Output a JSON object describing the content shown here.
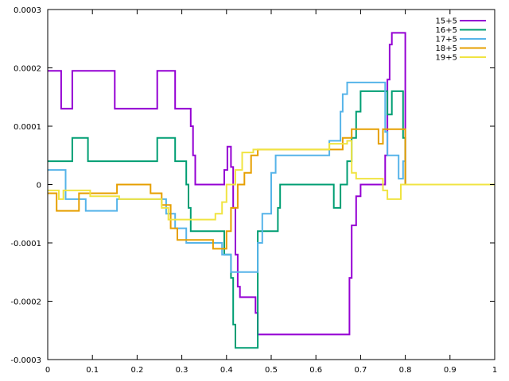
{
  "chart_data": {
    "type": "line",
    "title": "",
    "xlabel": "",
    "ylabel": "",
    "xlim": [
      0,
      1
    ],
    "ylim": [
      -0.0003,
      0.0003
    ],
    "x_ticks": [
      0,
      0.1,
      0.2,
      0.3,
      0.4,
      0.5,
      0.6,
      0.7,
      0.8,
      0.9,
      1
    ],
    "x_tick_labels": [
      "0",
      "0.1",
      "0.2",
      "0.3",
      "0.4",
      "0.5",
      "0.6",
      "0.7",
      "0.8",
      "0.9",
      "1"
    ],
    "y_ticks": [
      -0.0003,
      -0.0002,
      -0.0001,
      0,
      0.0001,
      0.0002,
      0.0003
    ],
    "y_tick_labels": [
      "-0.0003",
      "-0.0002",
      "-0.0001",
      "0",
      "0.0001",
      "0.0002",
      "0.0003"
    ],
    "grid": false,
    "legend_position": "top-right",
    "series": [
      {
        "name": "15+5",
        "color": "#9400d3",
        "points": [
          [
            0,
            0.000195
          ],
          [
            0.03,
            0.000195
          ],
          [
            0.03,
            0.00013
          ],
          [
            0.055,
            0.00013
          ],
          [
            0.055,
            0.000195
          ],
          [
            0.15,
            0.000195
          ],
          [
            0.15,
            0.00013
          ],
          [
            0.245,
            0.00013
          ],
          [
            0.245,
            0.000195
          ],
          [
            0.285,
            0.000195
          ],
          [
            0.285,
            0.00013
          ],
          [
            0.32,
            0.00013
          ],
          [
            0.32,
            0.0001
          ],
          [
            0.325,
            0.0001
          ],
          [
            0.325,
            5e-05
          ],
          [
            0.33,
            5e-05
          ],
          [
            0.33,
            0
          ],
          [
            0.395,
            0
          ],
          [
            0.395,
            2.5e-05
          ],
          [
            0.402,
            2.5e-05
          ],
          [
            0.402,
            6.5e-05
          ],
          [
            0.41,
            6.5e-05
          ],
          [
            0.41,
            3e-05
          ],
          [
            0.415,
            3e-05
          ],
          [
            0.415,
            -4e-05
          ],
          [
            0.42,
            -4e-05
          ],
          [
            0.42,
            -0.00012
          ],
          [
            0.425,
            -0.00012
          ],
          [
            0.425,
            -0.000175
          ],
          [
            0.43,
            -0.000175
          ],
          [
            0.43,
            -0.000193
          ],
          [
            0.465,
            -0.000193
          ],
          [
            0.465,
            -0.00022
          ],
          [
            0.47,
            -0.00022
          ],
          [
            0.47,
            -0.000257
          ],
          [
            0.675,
            -0.000257
          ],
          [
            0.675,
            -0.00016
          ],
          [
            0.68,
            -0.00016
          ],
          [
            0.68,
            -7e-05
          ],
          [
            0.69,
            -7e-05
          ],
          [
            0.69,
            -2e-05
          ],
          [
            0.7,
            -2e-05
          ],
          [
            0.7,
            0
          ],
          [
            0.755,
            0
          ],
          [
            0.755,
            5e-05
          ],
          [
            0.76,
            5e-05
          ],
          [
            0.76,
            0.00018
          ],
          [
            0.765,
            0.00018
          ],
          [
            0.765,
            0.00024
          ],
          [
            0.77,
            0.00024
          ],
          [
            0.77,
            0.00026
          ],
          [
            0.8,
            0.00026
          ],
          [
            0.8,
            0
          ]
        ]
      },
      {
        "name": "16+5",
        "color": "#009e73",
        "points": [
          [
            0,
            4e-05
          ],
          [
            0.055,
            4e-05
          ],
          [
            0.055,
            8e-05
          ],
          [
            0.09,
            8e-05
          ],
          [
            0.09,
            4e-05
          ],
          [
            0.245,
            4e-05
          ],
          [
            0.245,
            8e-05
          ],
          [
            0.285,
            8e-05
          ],
          [
            0.285,
            4e-05
          ],
          [
            0.31,
            4e-05
          ],
          [
            0.31,
            0
          ],
          [
            0.315,
            0
          ],
          [
            0.315,
            -4e-05
          ],
          [
            0.32,
            -4e-05
          ],
          [
            0.32,
            -8e-05
          ],
          [
            0.395,
            -8e-05
          ],
          [
            0.395,
            -0.00012
          ],
          [
            0.41,
            -0.00012
          ],
          [
            0.41,
            -0.00016
          ],
          [
            0.415,
            -0.00016
          ],
          [
            0.415,
            -0.00024
          ],
          [
            0.42,
            -0.00024
          ],
          [
            0.42,
            -0.00028
          ],
          [
            0.47,
            -0.00028
          ],
          [
            0.47,
            -8e-05
          ],
          [
            0.515,
            -8e-05
          ],
          [
            0.515,
            -4e-05
          ],
          [
            0.52,
            -4e-05
          ],
          [
            0.52,
            0
          ],
          [
            0.64,
            0
          ],
          [
            0.64,
            -4e-05
          ],
          [
            0.655,
            -4e-05
          ],
          [
            0.655,
            0
          ],
          [
            0.67,
            0
          ],
          [
            0.67,
            4e-05
          ],
          [
            0.68,
            4e-05
          ],
          [
            0.68,
            8e-05
          ],
          [
            0.69,
            8e-05
          ],
          [
            0.69,
            0.000125
          ],
          [
            0.7,
            0.000125
          ],
          [
            0.7,
            0.00016
          ],
          [
            0.76,
            0.00016
          ],
          [
            0.76,
            0.00012
          ],
          [
            0.77,
            0.00012
          ],
          [
            0.77,
            0.00016
          ],
          [
            0.795,
            0.00016
          ],
          [
            0.795,
            8e-05
          ],
          [
            0.8,
            8e-05
          ],
          [
            0.8,
            0
          ]
        ]
      },
      {
        "name": "17+5",
        "color": "#56b4e9",
        "points": [
          [
            0,
            2.5e-05
          ],
          [
            0.04,
            2.5e-05
          ],
          [
            0.04,
            -2.5e-05
          ],
          [
            0.085,
            -2.5e-05
          ],
          [
            0.085,
            -4.5e-05
          ],
          [
            0.155,
            -4.5e-05
          ],
          [
            0.155,
            -2.5e-05
          ],
          [
            0.265,
            -2.5e-05
          ],
          [
            0.265,
            -5e-05
          ],
          [
            0.285,
            -5e-05
          ],
          [
            0.285,
            -7.5e-05
          ],
          [
            0.31,
            -7.5e-05
          ],
          [
            0.31,
            -0.0001
          ],
          [
            0.39,
            -0.0001
          ],
          [
            0.39,
            -0.00012
          ],
          [
            0.41,
            -0.00012
          ],
          [
            0.41,
            -0.00015
          ],
          [
            0.47,
            -0.00015
          ],
          [
            0.47,
            -0.0001
          ],
          [
            0.48,
            -0.0001
          ],
          [
            0.48,
            -5e-05
          ],
          [
            0.5,
            -5e-05
          ],
          [
            0.5,
            2e-05
          ],
          [
            0.51,
            2e-05
          ],
          [
            0.51,
            5e-05
          ],
          [
            0.63,
            5e-05
          ],
          [
            0.63,
            7.5e-05
          ],
          [
            0.655,
            7.5e-05
          ],
          [
            0.655,
            0.000125
          ],
          [
            0.66,
            0.000125
          ],
          [
            0.66,
            0.000155
          ],
          [
            0.67,
            0.000155
          ],
          [
            0.67,
            0.000175
          ],
          [
            0.755,
            0.000175
          ],
          [
            0.755,
            9e-05
          ],
          [
            0.76,
            9e-05
          ],
          [
            0.76,
            5e-05
          ],
          [
            0.785,
            5e-05
          ],
          [
            0.785,
            1e-05
          ],
          [
            0.795,
            1e-05
          ],
          [
            0.795,
            4e-05
          ],
          [
            0.8,
            4e-05
          ],
          [
            0.8,
            0
          ]
        ]
      },
      {
        "name": "18+5",
        "color": "#e69f00",
        "points": [
          [
            0,
            -1.5e-05
          ],
          [
            0.02,
            -1.5e-05
          ],
          [
            0.02,
            -4.5e-05
          ],
          [
            0.07,
            -4.5e-05
          ],
          [
            0.07,
            -1.5e-05
          ],
          [
            0.155,
            -1.5e-05
          ],
          [
            0.155,
            0
          ],
          [
            0.23,
            0
          ],
          [
            0.23,
            -1.5e-05
          ],
          [
            0.255,
            -1.5e-05
          ],
          [
            0.255,
            -3.5e-05
          ],
          [
            0.275,
            -3.5e-05
          ],
          [
            0.275,
            -7.5e-05
          ],
          [
            0.29,
            -7.5e-05
          ],
          [
            0.29,
            -9.5e-05
          ],
          [
            0.37,
            -9.5e-05
          ],
          [
            0.37,
            -0.00011
          ],
          [
            0.4,
            -0.00011
          ],
          [
            0.4,
            -8e-05
          ],
          [
            0.41,
            -8e-05
          ],
          [
            0.41,
            -4e-05
          ],
          [
            0.425,
            -4e-05
          ],
          [
            0.425,
            0
          ],
          [
            0.44,
            0
          ],
          [
            0.44,
            2e-05
          ],
          [
            0.455,
            2e-05
          ],
          [
            0.455,
            5e-05
          ],
          [
            0.47,
            5e-05
          ],
          [
            0.47,
            6e-05
          ],
          [
            0.66,
            6e-05
          ],
          [
            0.66,
            8e-05
          ],
          [
            0.68,
            8e-05
          ],
          [
            0.68,
            9.5e-05
          ],
          [
            0.74,
            9.5e-05
          ],
          [
            0.74,
            7e-05
          ],
          [
            0.75,
            7e-05
          ],
          [
            0.75,
            9.5e-05
          ],
          [
            0.8,
            9.5e-05
          ],
          [
            0.8,
            0
          ]
        ]
      },
      {
        "name": "19+5",
        "color": "#f0e442",
        "points": [
          [
            0,
            -1e-05
          ],
          [
            0.025,
            -1e-05
          ],
          [
            0.025,
            -2.5e-05
          ],
          [
            0.035,
            -2.5e-05
          ],
          [
            0.035,
            -1e-05
          ],
          [
            0.095,
            -1e-05
          ],
          [
            0.095,
            -2e-05
          ],
          [
            0.16,
            -2e-05
          ],
          [
            0.16,
            -2.5e-05
          ],
          [
            0.255,
            -2.5e-05
          ],
          [
            0.255,
            -4e-05
          ],
          [
            0.27,
            -4e-05
          ],
          [
            0.27,
            -6e-05
          ],
          [
            0.375,
            -6e-05
          ],
          [
            0.375,
            -5e-05
          ],
          [
            0.39,
            -5e-05
          ],
          [
            0.39,
            -3e-05
          ],
          [
            0.4,
            -3e-05
          ],
          [
            0.4,
            0
          ],
          [
            0.42,
            0
          ],
          [
            0.42,
            2.5e-05
          ],
          [
            0.435,
            2.5e-05
          ],
          [
            0.435,
            5.5e-05
          ],
          [
            0.46,
            5.5e-05
          ],
          [
            0.46,
            6e-05
          ],
          [
            0.63,
            6e-05
          ],
          [
            0.63,
            7e-05
          ],
          [
            0.67,
            7e-05
          ],
          [
            0.67,
            7.5e-05
          ],
          [
            0.68,
            7.5e-05
          ],
          [
            0.68,
            2e-05
          ],
          [
            0.69,
            2e-05
          ],
          [
            0.69,
            1e-05
          ],
          [
            0.75,
            1e-05
          ],
          [
            0.75,
            -1e-05
          ],
          [
            0.76,
            -1e-05
          ],
          [
            0.76,
            -2.5e-05
          ],
          [
            0.79,
            -2.5e-05
          ],
          [
            0.79,
            0
          ],
          [
            1.0,
            0
          ]
        ]
      }
    ]
  }
}
